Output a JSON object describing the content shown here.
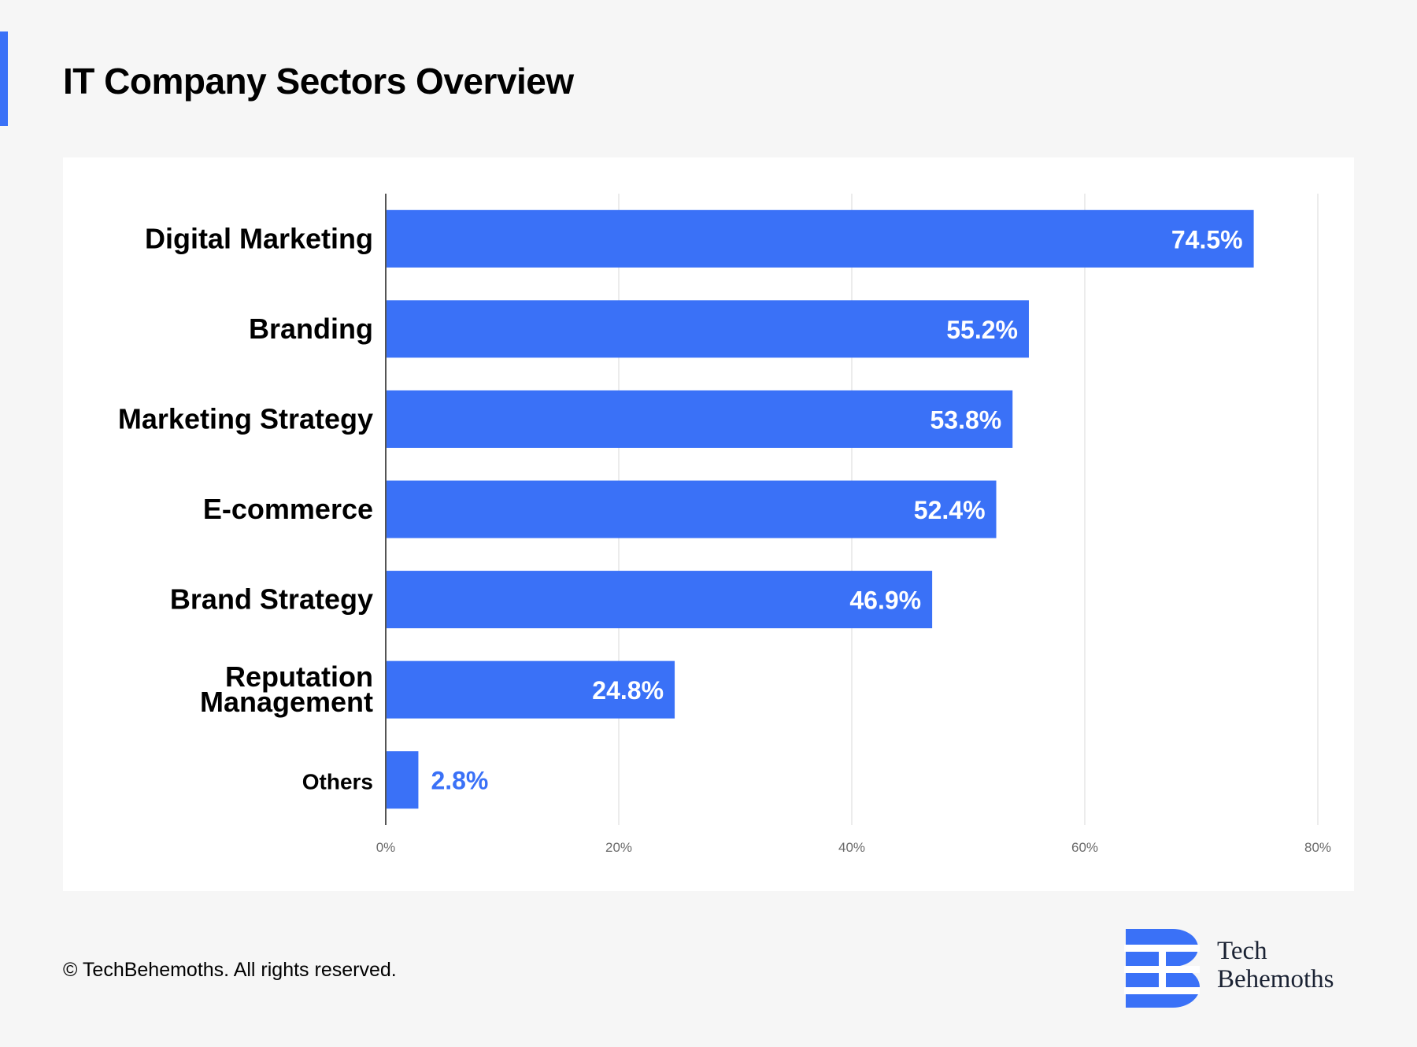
{
  "title": "IT Company Sectors Overview",
  "colors": {
    "accent": "#3a71f7",
    "bar": "#3a71f7",
    "grid": "#e5e5e5",
    "axis": "#555555"
  },
  "chart_data": {
    "type": "bar",
    "orientation": "horizontal",
    "categories": [
      "Digital Marketing",
      "Branding",
      "Marketing Strategy",
      "E-commerce",
      "Brand Strategy",
      "Reputation Management",
      "Others"
    ],
    "values": [
      74.5,
      55.2,
      53.8,
      52.4,
      46.9,
      24.8,
      2.8
    ],
    "value_labels": [
      "74.5%",
      "55.2%",
      "53.8%",
      "52.4%",
      "46.9%",
      "24.8%",
      "2.8%"
    ],
    "xlim": [
      0,
      80
    ],
    "xticks": [
      0,
      20,
      40,
      60,
      80
    ],
    "xtick_labels": [
      "0%",
      "20%",
      "40%",
      "60%",
      "80%"
    ],
    "xlabel": "",
    "ylabel": "",
    "grid": true
  },
  "footer": {
    "copyright": "© TechBehemoths. All rights reserved."
  },
  "logo": {
    "line1": "Tech",
    "line2": "Behemoths",
    "icon": "techbehemoths-logo-icon"
  }
}
